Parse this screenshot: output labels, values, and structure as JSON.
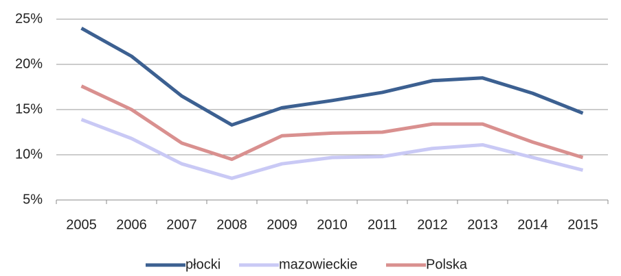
{
  "chart_data": {
    "type": "line",
    "categories": [
      "2005",
      "2006",
      "2007",
      "2008",
      "2009",
      "2010",
      "2011",
      "2012",
      "2013",
      "2014",
      "2015"
    ],
    "series": [
      {
        "name": "płocki",
        "color": "#3c6091",
        "values": [
          24.0,
          20.9,
          16.5,
          13.3,
          15.2,
          16.0,
          16.9,
          18.2,
          18.5,
          16.8,
          14.6
        ]
      },
      {
        "name": "mazowieckie",
        "color": "#c9c9f5",
        "values": [
          13.9,
          11.8,
          9.0,
          7.4,
          9.0,
          9.7,
          9.8,
          10.7,
          11.1,
          9.7,
          8.3
        ]
      },
      {
        "name": "Polska",
        "color": "#d9908f",
        "values": [
          17.6,
          15.0,
          11.3,
          9.5,
          12.1,
          12.4,
          12.5,
          13.4,
          13.4,
          11.4,
          9.7
        ]
      }
    ],
    "ylim": [
      5,
      25
    ],
    "yticks": [
      {
        "value": 5,
        "label": "5%"
      },
      {
        "value": 10,
        "label": "10%"
      },
      {
        "value": 15,
        "label": "15%"
      },
      {
        "value": 20,
        "label": "20%"
      },
      {
        "value": 25,
        "label": "25%"
      }
    ],
    "grid": true,
    "legend": "bottom"
  }
}
